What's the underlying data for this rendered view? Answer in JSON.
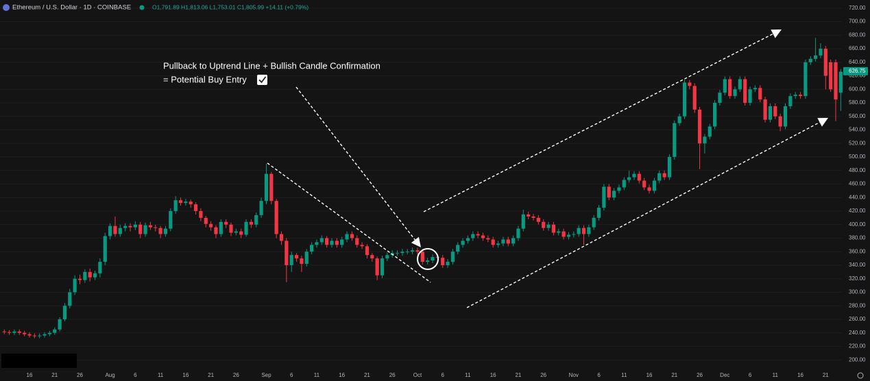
{
  "chart_data": {
    "type": "candlestick",
    "title": "Ethereum / U.S. Dollar · 1D · COINBASE",
    "ohlc_legend": "O1,791.89 H1,813.06 L1,753.01 C1,805.99 +14.11 (+0.79%)",
    "annotation": [
      "Pullback to Uptrend Line + Bullish Candle Confirmation",
      "= Potential Buy Entry"
    ],
    "up_color": "#089981",
    "down_color": "#f23645",
    "last_price": 626.75,
    "grid": true,
    "ylim": [
      185,
      732
    ],
    "yticks": [
      {
        "value": 200,
        "label": "200.00"
      },
      {
        "value": 220,
        "label": "220.00"
      },
      {
        "value": 240,
        "label": "240.00"
      },
      {
        "value": 260,
        "label": "260.00"
      },
      {
        "value": 280,
        "label": "280.00"
      },
      {
        "value": 300,
        "label": "300.00"
      },
      {
        "value": 320,
        "label": "320.00"
      },
      {
        "value": 340,
        "label": "340.00"
      },
      {
        "value": 360,
        "label": "360.00"
      },
      {
        "value": 380,
        "label": "380.00"
      },
      {
        "value": 400,
        "label": "400.00"
      },
      {
        "value": 420,
        "label": "420.00"
      },
      {
        "value": 440,
        "label": "440.00"
      },
      {
        "value": 460,
        "label": "460.00"
      },
      {
        "value": 480,
        "label": "480.00"
      },
      {
        "value": 500,
        "label": "500.00"
      },
      {
        "value": 520,
        "label": "520.00"
      },
      {
        "value": 540,
        "label": "540.00"
      },
      {
        "value": 560,
        "label": "560.00"
      },
      {
        "value": 580,
        "label": "580.00"
      },
      {
        "value": 600,
        "label": "600.00"
      },
      {
        "value": 620,
        "label": "620.00"
      },
      {
        "value": 640,
        "label": "640.00"
      },
      {
        "value": 660,
        "label": "660.00"
      },
      {
        "value": 680,
        "label": "680.00"
      },
      {
        "value": 700,
        "label": "700.00"
      },
      {
        "value": 720,
        "label": "720.00"
      }
    ],
    "categories": [
      null,
      null,
      null,
      null,
      null,
      "16",
      null,
      null,
      null,
      null,
      "21",
      null,
      null,
      null,
      null,
      "26",
      null,
      null,
      null,
      null,
      null,
      "Aug",
      null,
      null,
      null,
      null,
      "6",
      null,
      null,
      null,
      null,
      "11",
      null,
      null,
      null,
      null,
      "16",
      null,
      null,
      null,
      null,
      "21",
      null,
      null,
      null,
      null,
      "26",
      null,
      null,
      null,
      null,
      null,
      "Sep",
      null,
      null,
      null,
      null,
      "6",
      null,
      null,
      null,
      null,
      "11",
      null,
      null,
      null,
      null,
      "16",
      null,
      null,
      null,
      null,
      "21",
      null,
      null,
      null,
      null,
      "26",
      null,
      null,
      null,
      null,
      "Oct",
      null,
      null,
      null,
      null,
      "6",
      null,
      null,
      null,
      null,
      "11",
      null,
      null,
      null,
      null,
      "16",
      null,
      null,
      null,
      null,
      "21",
      null,
      null,
      null,
      null,
      "26",
      null,
      null,
      null,
      null,
      null,
      "Nov",
      null,
      null,
      null,
      null,
      "6",
      null,
      null,
      null,
      null,
      "11",
      null,
      null,
      null,
      null,
      "16",
      null,
      null,
      null,
      null,
      "21",
      null,
      null,
      null,
      null,
      "26",
      null,
      null,
      null,
      null,
      "Dec",
      null,
      null,
      null,
      null,
      "6",
      null,
      null,
      null,
      null,
      "11",
      null,
      null,
      null,
      null,
      "16",
      null,
      null,
      null,
      null,
      "21",
      null,
      null,
      null
    ],
    "open": [
      242,
      241,
      240,
      242,
      240,
      238,
      236,
      235,
      236,
      238,
      240,
      245,
      260,
      280,
      300,
      320,
      318,
      330,
      322,
      328,
      345,
      383,
      398,
      386,
      395,
      398,
      396,
      400,
      386,
      399,
      396,
      395,
      386,
      394,
      420,
      436,
      432,
      434,
      430,
      420,
      410,
      401,
      396,
      386,
      404,
      400,
      388,
      390,
      385,
      404,
      400,
      414,
      435,
      475,
      435,
      386,
      376,
      340,
      355,
      350,
      342,
      360,
      370,
      374,
      380,
      370,
      376,
      370,
      378,
      386,
      380,
      370,
      368,
      355,
      350,
      325,
      350,
      355,
      358,
      358,
      360,
      360,
      362,
      360,
      345,
      347,
      352,
      351,
      340,
      345,
      360,
      370,
      376,
      380,
      386,
      384,
      380,
      378,
      370,
      372,
      378,
      372,
      380,
      394,
      415,
      412,
      410,
      404,
      395,
      400,
      388,
      390,
      382,
      385,
      386,
      395,
      386,
      396,
      410,
      425,
      456,
      440,
      450,
      455,
      466,
      470,
      475,
      465,
      455,
      450,
      465,
      476,
      470,
      500,
      550,
      560,
      610,
      605,
      570,
      520,
      530,
      545,
      580,
      595,
      615,
      590,
      600,
      615,
      580,
      600,
      602,
      585,
      555,
      575,
      560,
      545,
      575,
      590,
      592,
      590,
      640,
      645,
      650,
      660,
      640,
      640,
      595
    ],
    "high": [
      245,
      244,
      245,
      245,
      243,
      241,
      239,
      239,
      241,
      243,
      248,
      263,
      284,
      305,
      325,
      326,
      334,
      335,
      332,
      350,
      388,
      402,
      412,
      400,
      402,
      402,
      405,
      404,
      403,
      404,
      400,
      398,
      398,
      424,
      442,
      440,
      438,
      437,
      433,
      424,
      413,
      405,
      399,
      408,
      408,
      403,
      394,
      394,
      408,
      408,
      418,
      440,
      490,
      478,
      438,
      390,
      380,
      360,
      358,
      354,
      364,
      374,
      378,
      384,
      383,
      380,
      380,
      382,
      390,
      390,
      384,
      374,
      371,
      358,
      353,
      354,
      359,
      362,
      362,
      364,
      364,
      366,
      366,
      364,
      351,
      356,
      356,
      355,
      349,
      364,
      374,
      380,
      384,
      390,
      390,
      388,
      384,
      382,
      376,
      382,
      382,
      384,
      398,
      422,
      419,
      416,
      414,
      408,
      404,
      404,
      394,
      394,
      389,
      390,
      399,
      399,
      400,
      414,
      429,
      460,
      460,
      454,
      459,
      470,
      480,
      479,
      479,
      469,
      459,
      469,
      480,
      480,
      504,
      554,
      564,
      614,
      614,
      609,
      574,
      534,
      549,
      584,
      599,
      619,
      619,
      604,
      619,
      619,
      604,
      606,
      606,
      589,
      579,
      579,
      564,
      579,
      594,
      596,
      596,
      644,
      649,
      676,
      668,
      664,
      644,
      644,
      630
    ],
    "low": [
      238,
      237,
      237,
      237,
      235,
      233,
      232,
      232,
      233,
      235,
      237,
      242,
      257,
      276,
      296,
      312,
      314,
      316,
      318,
      322,
      340,
      378,
      382,
      382,
      390,
      390,
      392,
      380,
      382,
      392,
      390,
      380,
      382,
      390,
      416,
      428,
      428,
      425,
      415,
      405,
      396,
      391,
      380,
      382,
      395,
      383,
      384,
      380,
      382,
      395,
      396,
      410,
      430,
      430,
      380,
      370,
      315,
      330,
      345,
      330,
      338,
      356,
      366,
      370,
      366,
      366,
      366,
      366,
      374,
      376,
      366,
      364,
      350,
      345,
      318,
      321,
      346,
      351,
      354,
      354,
      356,
      356,
      356,
      341,
      341,
      343,
      347,
      336,
      336,
      341,
      356,
      366,
      372,
      376,
      380,
      376,
      374,
      366,
      366,
      368,
      368,
      368,
      376,
      390,
      408,
      406,
      400,
      391,
      391,
      384,
      384,
      378,
      378,
      381,
      382,
      370,
      382,
      392,
      406,
      421,
      436,
      436,
      446,
      451,
      462,
      466,
      461,
      451,
      446,
      446,
      461,
      466,
      466,
      496,
      546,
      556,
      600,
      565,
      482,
      505,
      526,
      541,
      576,
      591,
      586,
      586,
      596,
      576,
      576,
      596,
      581,
      551,
      551,
      556,
      538,
      541,
      571,
      586,
      586,
      586,
      636,
      641,
      646,
      600,
      596,
      553,
      568
    ],
    "close": [
      241,
      240,
      242,
      240,
      238,
      236,
      235,
      236,
      238,
      240,
      245,
      260,
      280,
      300,
      320,
      318,
      330,
      322,
      328,
      345,
      383,
      398,
      386,
      395,
      398,
      396,
      400,
      386,
      399,
      396,
      395,
      386,
      394,
      420,
      436,
      432,
      434,
      430,
      420,
      410,
      401,
      396,
      386,
      404,
      400,
      388,
      390,
      385,
      404,
      400,
      414,
      435,
      475,
      435,
      386,
      376,
      340,
      355,
      350,
      342,
      360,
      370,
      374,
      380,
      370,
      376,
      370,
      378,
      386,
      380,
      370,
      368,
      355,
      350,
      325,
      350,
      355,
      358,
      358,
      360,
      360,
      362,
      360,
      345,
      347,
      352,
      351,
      340,
      345,
      360,
      370,
      376,
      380,
      386,
      384,
      380,
      378,
      370,
      372,
      378,
      372,
      380,
      394,
      415,
      412,
      410,
      404,
      395,
      400,
      388,
      390,
      382,
      385,
      386,
      395,
      386,
      396,
      410,
      425,
      456,
      440,
      450,
      455,
      466,
      470,
      475,
      465,
      455,
      450,
      465,
      476,
      470,
      500,
      550,
      560,
      610,
      605,
      570,
      520,
      530,
      545,
      580,
      595,
      615,
      590,
      600,
      615,
      580,
      600,
      602,
      585,
      555,
      575,
      560,
      545,
      575,
      590,
      592,
      590,
      640,
      645,
      650,
      660,
      620,
      600,
      585,
      626
    ]
  }
}
